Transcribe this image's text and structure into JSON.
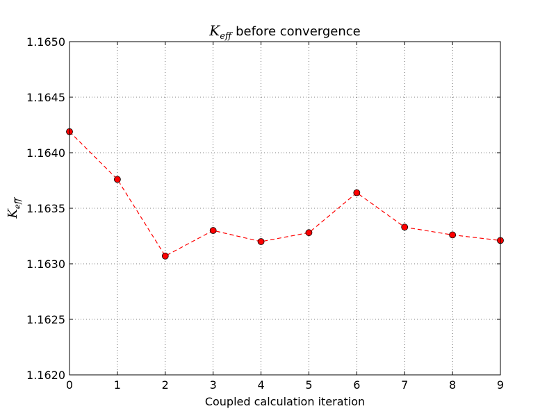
{
  "chart_data": {
    "type": "line",
    "title": {
      "symbol": "K",
      "subscript": "eff",
      "text": "before convergence"
    },
    "xlabel": "Coupled calculation iteration",
    "ylabel": {
      "symbol": "K",
      "subscript": "eff"
    },
    "xlim": [
      0,
      9
    ],
    "ylim": [
      1.162,
      1.165
    ],
    "xticks": [
      0,
      1,
      2,
      3,
      4,
      5,
      6,
      7,
      8,
      9
    ],
    "xtick_labels": [
      "0",
      "1",
      "2",
      "3",
      "4",
      "5",
      "6",
      "7",
      "8",
      "9"
    ],
    "yticks": [
      1.162,
      1.1625,
      1.163,
      1.1635,
      1.164,
      1.1645,
      1.165
    ],
    "ytick_labels": [
      "1.1620",
      "1.1625",
      "1.1630",
      "1.1635",
      "1.1640",
      "1.1645",
      "1.1650"
    ],
    "grid": true,
    "series": [
      {
        "name": "Keff",
        "x": [
          0,
          1,
          2,
          3,
          4,
          5,
          6,
          7,
          8,
          9
        ],
        "values": [
          1.16419,
          1.16376,
          1.16307,
          1.1633,
          1.1632,
          1.16328,
          1.16364,
          1.16333,
          1.16326,
          1.16321
        ],
        "color": "#ff0000",
        "line_style": "dashed",
        "marker": "circle"
      }
    ]
  }
}
